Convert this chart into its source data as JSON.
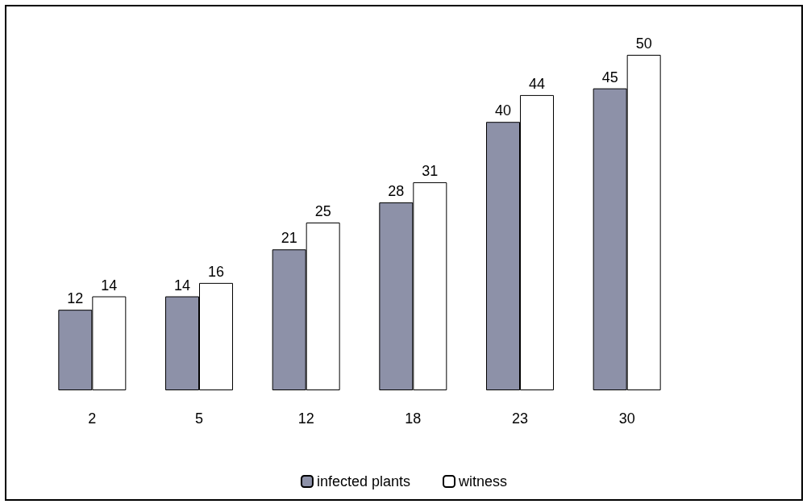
{
  "chart_data": {
    "type": "bar",
    "categories": [
      "2",
      "5",
      "12",
      "18",
      "23",
      "30"
    ],
    "series": [
      {
        "name": "infected plants",
        "color": "#8d91a8",
        "values": [
          12,
          14,
          21,
          28,
          40,
          45
        ]
      },
      {
        "name": "witness",
        "color": "#ffffff",
        "values": [
          14,
          16,
          25,
          31,
          44,
          50
        ]
      }
    ],
    "data_labels": true,
    "legend": "bottom"
  }
}
